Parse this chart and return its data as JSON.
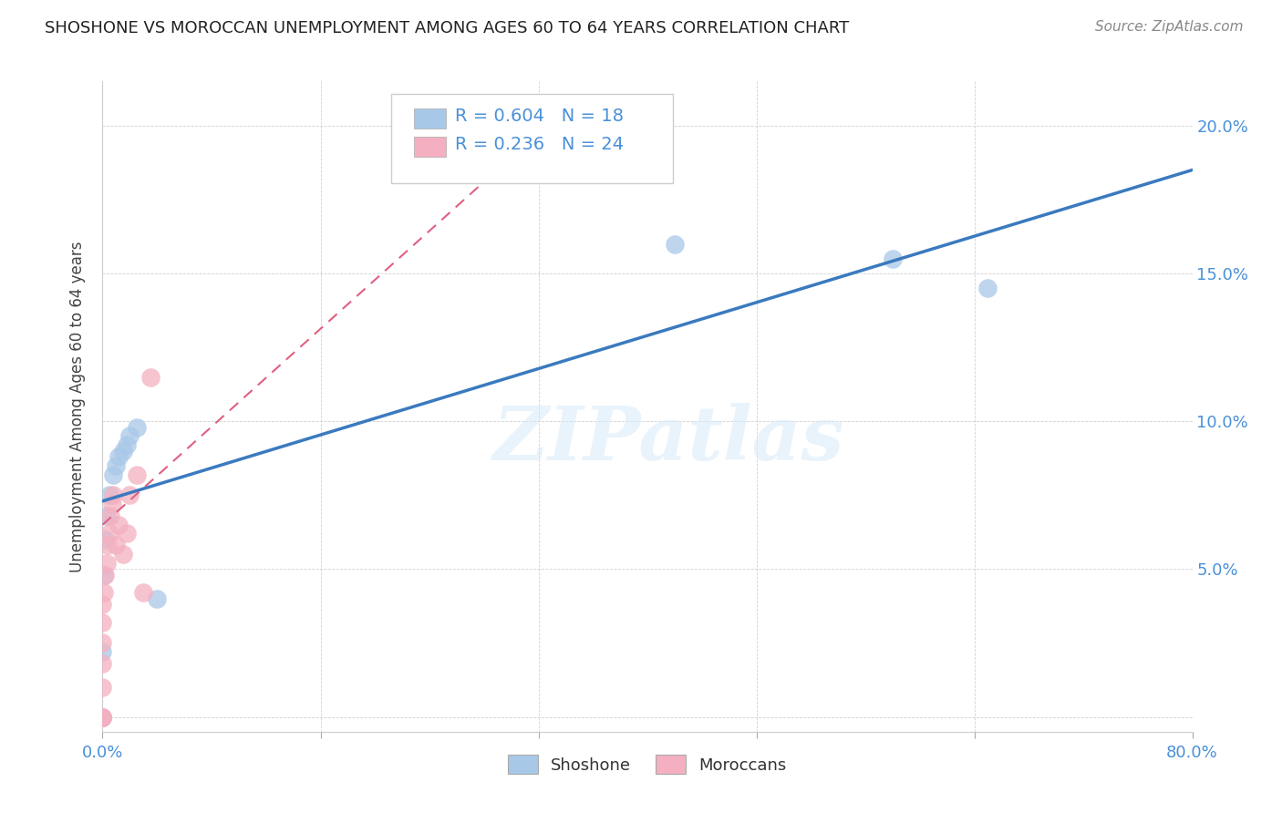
{
  "title": "SHOSHONE VS MOROCCAN UNEMPLOYMENT AMONG AGES 60 TO 64 YEARS CORRELATION CHART",
  "source": "Source: ZipAtlas.com",
  "ylabel": "Unemployment Among Ages 60 to 64 years",
  "xlim": [
    0.0,
    0.8
  ],
  "ylim": [
    -0.005,
    0.215
  ],
  "xtick_positions": [
    0.0,
    0.16,
    0.32,
    0.48,
    0.64,
    0.8
  ],
  "xticklabels": [
    "0.0%",
    "",
    "",
    "",
    "",
    "80.0%"
  ],
  "ytick_positions": [
    0.0,
    0.05,
    0.1,
    0.15,
    0.2
  ],
  "right_yticklabels": [
    "",
    "5.0%",
    "10.0%",
    "15.0%",
    "20.0%"
  ],
  "shoshone_x": [
    0.0,
    0.0,
    0.0,
    0.001,
    0.002,
    0.003,
    0.005,
    0.008,
    0.01,
    0.012,
    0.015,
    0.018,
    0.02,
    0.025,
    0.04,
    0.42,
    0.58,
    0.65
  ],
  "shoshone_y": [
    0.0,
    0.0,
    0.022,
    0.048,
    0.06,
    0.068,
    0.075,
    0.082,
    0.085,
    0.088,
    0.09,
    0.092,
    0.095,
    0.098,
    0.04,
    0.16,
    0.155,
    0.145
  ],
  "moroccan_x": [
    0.0,
    0.0,
    0.0,
    0.0,
    0.0,
    0.0,
    0.0,
    0.0,
    0.001,
    0.002,
    0.003,
    0.004,
    0.005,
    0.006,
    0.007,
    0.008,
    0.01,
    0.012,
    0.015,
    0.018,
    0.02,
    0.025,
    0.03,
    0.035
  ],
  "moroccan_y": [
    0.0,
    0.0,
    0.0,
    0.01,
    0.018,
    0.025,
    0.032,
    0.038,
    0.042,
    0.048,
    0.052,
    0.058,
    0.062,
    0.068,
    0.072,
    0.075,
    0.058,
    0.065,
    0.055,
    0.062,
    0.075,
    0.082,
    0.042,
    0.115
  ],
  "shoshone_line_start_x": 0.0,
  "shoshone_line_start_y": 0.073,
  "shoshone_line_end_x": 0.8,
  "shoshone_line_end_y": 0.185,
  "moroccan_line_start_x": 0.0,
  "moroccan_line_start_y": 0.065,
  "moroccan_line_end_x": 0.35,
  "moroccan_line_end_y": 0.21,
  "shoshone_color": "#a8c8e8",
  "moroccan_color": "#f4b0c0",
  "shoshone_line_color": "#3a7abf",
  "moroccan_line_color": "#e06080",
  "shoshone_R": "0.604",
  "shoshone_N": "18",
  "moroccan_R": "0.236",
  "moroccan_N": "24",
  "legend_label_shoshone": "Shoshone",
  "legend_label_moroccan": "Moroccans",
  "watermark_text": "ZIPatlas",
  "background_color": "#ffffff",
  "grid_color": "#cccccc"
}
